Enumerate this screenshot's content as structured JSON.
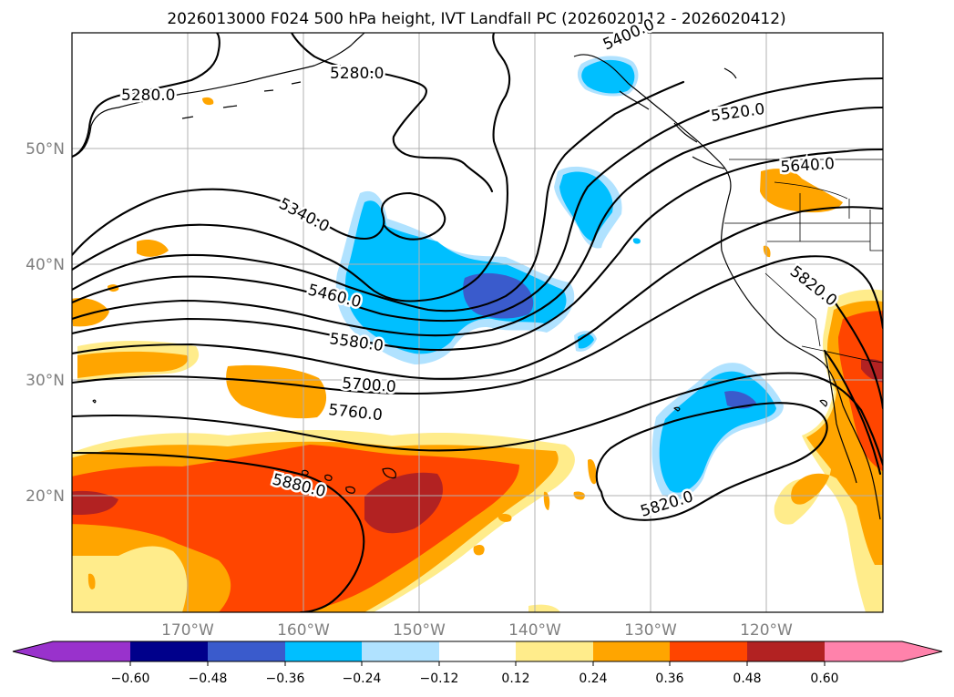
{
  "title": "2026013000 F024 500 hPa height, IVT Landfall PC (2026020112 - 2026020412)",
  "latitude_labels": [
    "50°N",
    "40°N",
    "30°N",
    "20°N"
  ],
  "longitude_labels": [
    "170°W",
    "160°W",
    "150°W",
    "140°W",
    "130°W",
    "120°W"
  ],
  "contour_labels": [
    "5280.0",
    "5280.0",
    "5400.0",
    "5520.0",
    "5640.0",
    "5340.0",
    "5460.0",
    "5580.0",
    "5700.0",
    "5760.0",
    "5820.0",
    "5880.0",
    "5820.0"
  ],
  "colorbar": {
    "tick_labels": [
      "−0.60",
      "−0.48",
      "−0.36",
      "−0.24",
      "−0.12",
      "0.12",
      "0.24",
      "0.36",
      "0.48",
      "0.60"
    ],
    "colors": [
      "#9932cc",
      "#00008b",
      "#3a5bcc",
      "#00bfff",
      "#b0e2ff",
      "#ffffff",
      "#ffec8b",
      "#ffa500",
      "#ff4500",
      "#b22222",
      "#ff82ab"
    ]
  }
}
